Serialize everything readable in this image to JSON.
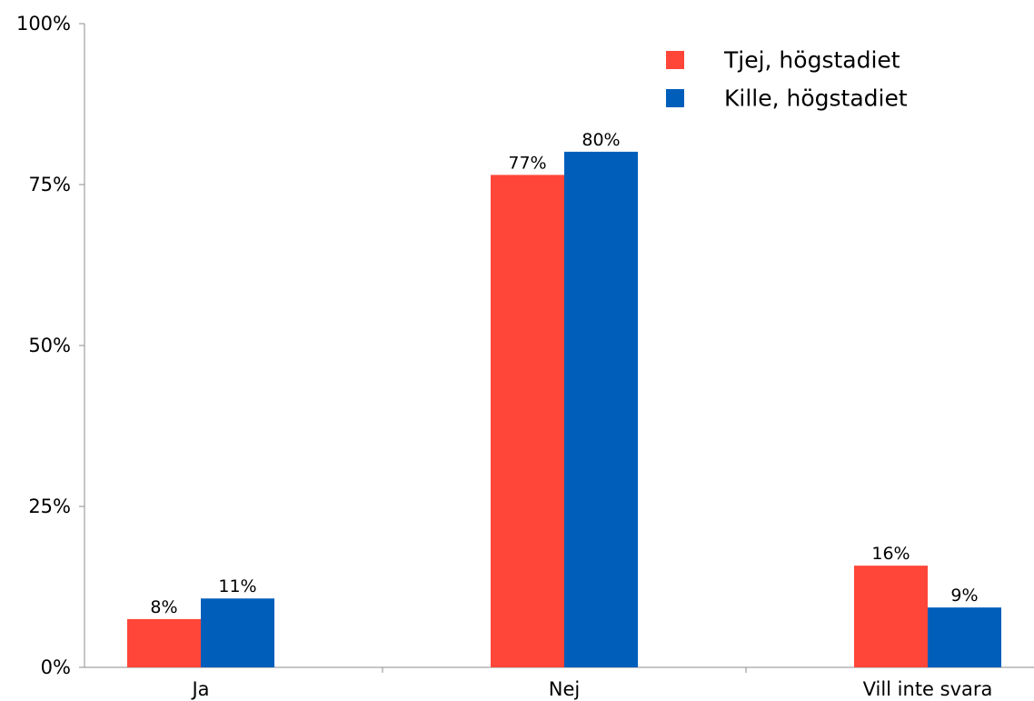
{
  "chart_data": {
    "type": "bar",
    "categories": [
      "Ja",
      "Nej",
      "Vill inte svara"
    ],
    "series": [
      {
        "name": "Tjej, högstadiet",
        "values": [
          7.5,
          76.5,
          15.8
        ],
        "labels": [
          "8%",
          "77%",
          "16%"
        ],
        "color": "#ff4638"
      },
      {
        "name": "Kille, högstadiet",
        "values": [
          10.7,
          80.1,
          9.3
        ],
        "labels": [
          "11%",
          "80%",
          "9%"
        ],
        "color": "#005ebb"
      }
    ],
    "y_ticks": [
      0,
      25,
      50,
      75,
      100
    ],
    "y_tick_labels": [
      "0%",
      "25%",
      "50%",
      "75%",
      "100%"
    ],
    "ylim": [
      0,
      100
    ],
    "title": "",
    "xlabel": "",
    "ylabel": "",
    "grid": false,
    "legend_position": "top-right",
    "axis_color": "#8c8c8c"
  }
}
